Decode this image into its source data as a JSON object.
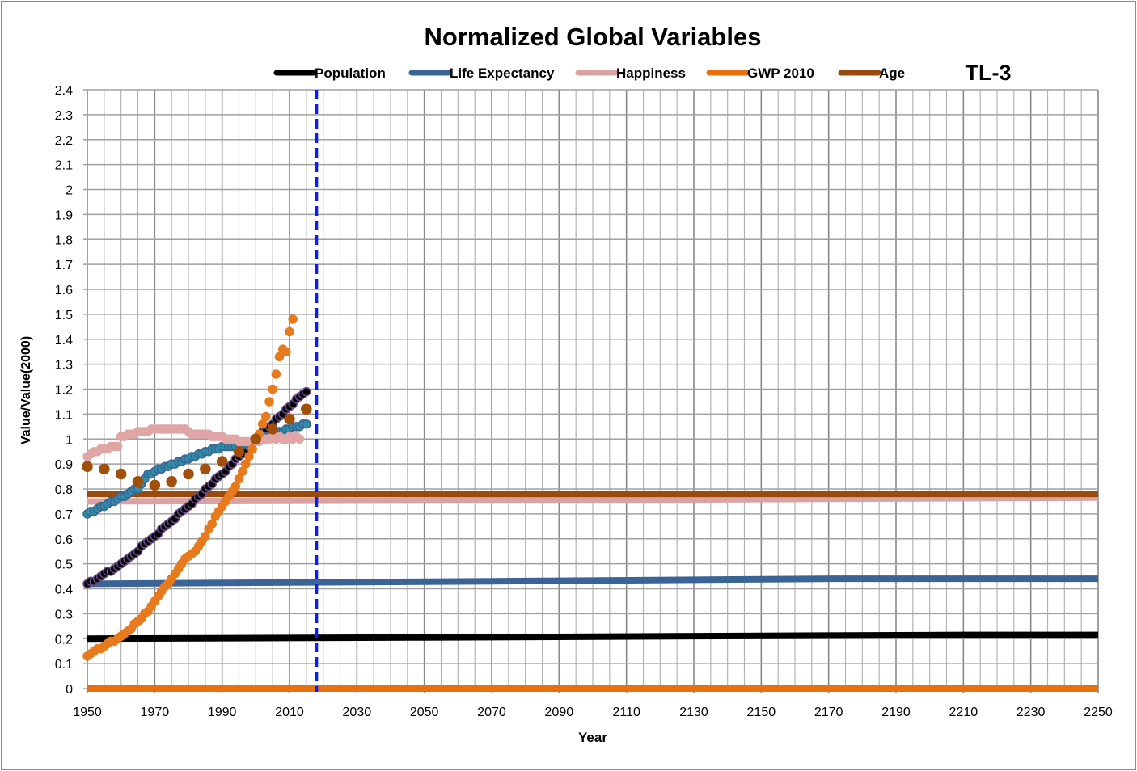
{
  "chart_data": {
    "type": "line+scatter",
    "title": "Normalized Global Variables",
    "tag": "TL-3",
    "xlabel": "Year",
    "ylabel": "Value/Value(2000)",
    "xlim": [
      1950,
      2250
    ],
    "ylim": [
      0,
      2.4
    ],
    "x_ticks": [
      1950,
      1970,
      1990,
      2010,
      2030,
      2050,
      2070,
      2090,
      2110,
      2130,
      2150,
      2170,
      2190,
      2210,
      2230,
      2250
    ],
    "y_ticks": [
      "0",
      "0.1",
      "0.2",
      "0.3",
      "0.4",
      "0.5",
      "0.6",
      "0.7",
      "0.8",
      "0.9",
      "1",
      "1.1",
      "1.2",
      "1.3",
      "1.4",
      "1.5",
      "1.6",
      "1.7",
      "1.8",
      "1.9",
      "2",
      "2.1",
      "2.2",
      "2.3",
      "2.4"
    ],
    "grid": true,
    "legend_position": "top",
    "vertical_marker_year": 2018,
    "vertical_marker_color": "#0a1ef0",
    "series": [
      {
        "name": "Population",
        "color": "#000000",
        "line": [
          [
            1950,
            0.2
          ],
          [
            2050,
            0.205
          ],
          [
            2130,
            0.21
          ],
          [
            2210,
            0.215
          ],
          [
            2250,
            0.215
          ]
        ]
      },
      {
        "name": "Life Expectancy",
        "color": "#3a6496",
        "line": [
          [
            1950,
            0.42
          ],
          [
            2070,
            0.43
          ],
          [
            2170,
            0.44
          ],
          [
            2250,
            0.44
          ]
        ]
      },
      {
        "name": "Happiness",
        "color": "#d9a3a3",
        "line": [
          [
            1950,
            0.75
          ],
          [
            2080,
            0.755
          ],
          [
            2250,
            0.765
          ]
        ]
      },
      {
        "name": "GWP 2010",
        "color": "#e8700e",
        "line": [
          [
            1950,
            0
          ],
          [
            2250,
            0
          ]
        ]
      },
      {
        "name": "Age",
        "color": "#9a4a0a",
        "line": [
          [
            1950,
            0.78
          ],
          [
            2250,
            0.78
          ]
        ]
      }
    ],
    "scatter": [
      {
        "color": "#000000",
        "edge": "#6a4a8a",
        "start_year": 1950,
        "values": [
          0.42,
          0.43,
          0.43,
          0.44,
          0.45,
          0.46,
          0.47,
          0.47,
          0.48,
          0.49,
          0.5,
          0.51,
          0.52,
          0.53,
          0.54,
          0.55,
          0.57,
          0.58,
          0.59,
          0.6,
          0.61,
          0.62,
          0.64,
          0.65,
          0.66,
          0.67,
          0.68,
          0.7,
          0.71,
          0.72,
          0.73,
          0.74,
          0.76,
          0.77,
          0.78,
          0.8,
          0.81,
          0.82,
          0.84,
          0.85,
          0.86,
          0.87,
          0.89,
          0.9,
          0.92,
          0.93,
          0.94,
          0.96,
          0.97,
          0.99,
          1.0,
          1.01,
          1.03,
          1.04,
          1.05,
          1.06,
          1.08,
          1.09,
          1.1,
          1.12,
          1.13,
          1.14,
          1.16,
          1.17,
          1.18,
          1.19
        ]
      },
      {
        "color": "#2e8fa8",
        "edge": "#3a6496",
        "start_year": 1950,
        "values": [
          0.7,
          0.71,
          0.71,
          0.72,
          0.73,
          0.73,
          0.74,
          0.75,
          0.75,
          0.76,
          0.77,
          0.77,
          0.78,
          0.79,
          0.8,
          0.8,
          0.82,
          0.84,
          0.86,
          0.86,
          0.87,
          0.88,
          0.88,
          0.89,
          0.89,
          0.9,
          0.9,
          0.91,
          0.91,
          0.92,
          0.92,
          0.93,
          0.93,
          0.94,
          0.94,
          0.95,
          0.95,
          0.96,
          0.96,
          0.96,
          0.97,
          0.97,
          0.97,
          0.97,
          0.97,
          0.98,
          0.98,
          0.98,
          0.98,
          0.99,
          0.99,
          1.0,
          1.0,
          1.01,
          1.01,
          1.02,
          1.02,
          1.03,
          1.03,
          1.04,
          1.04,
          1.05,
          1.05,
          1.05,
          1.06,
          1.06
        ]
      },
      {
        "color": "#e0a5a5",
        "edge": "#e0a5a5",
        "start_year": 1950,
        "values": [
          0.93,
          0.94,
          0.95,
          0.95,
          0.96,
          0.96,
          0.96,
          0.97,
          0.97,
          0.97,
          1.01,
          1.01,
          1.02,
          1.02,
          1.02,
          1.03,
          1.03,
          1.03,
          1.03,
          1.04,
          1.04,
          1.04,
          1.04,
          1.04,
          1.04,
          1.04,
          1.04,
          1.04,
          1.04,
          1.04,
          1.03,
          1.02,
          1.02,
          1.02,
          1.02,
          1.02,
          1.02,
          1.01,
          1.01,
          1.01,
          1.01,
          1.0,
          1.0,
          1.0,
          1.0,
          0.99,
          0.99,
          0.99,
          0.99,
          0.99,
          0.99,
          0.99,
          1.0,
          1.0,
          1.0,
          1.01,
          1.0,
          1.01,
          1.0,
          1.0,
          1.01,
          1.0,
          1.01,
          1.0
        ]
      },
      {
        "color": "#e87a1e",
        "edge": "#e87a1e",
        "start_year": 1950,
        "values": [
          0.13,
          0.14,
          0.15,
          0.16,
          0.16,
          0.17,
          0.18,
          0.19,
          0.19,
          0.2,
          0.21,
          0.22,
          0.23,
          0.24,
          0.26,
          0.27,
          0.28,
          0.3,
          0.31,
          0.33,
          0.35,
          0.37,
          0.39,
          0.41,
          0.42,
          0.44,
          0.46,
          0.48,
          0.5,
          0.52,
          0.53,
          0.54,
          0.55,
          0.57,
          0.59,
          0.61,
          0.64,
          0.66,
          0.69,
          0.71,
          0.73,
          0.75,
          0.77,
          0.79,
          0.81,
          0.84,
          0.87,
          0.9,
          0.93,
          0.96,
          1.0,
          1.02,
          1.06,
          1.09,
          1.15,
          1.2,
          1.26,
          1.33,
          1.36,
          1.35,
          1.43,
          1.48
        ]
      },
      {
        "color": "#a0500a",
        "edge": "#a0500a",
        "points": [
          [
            1950,
            0.89
          ],
          [
            1955,
            0.88
          ],
          [
            1960,
            0.86
          ],
          [
            1965,
            0.83
          ],
          [
            1970,
            0.815
          ],
          [
            1975,
            0.83
          ],
          [
            1980,
            0.86
          ],
          [
            1985,
            0.88
          ],
          [
            1990,
            0.91
          ],
          [
            1995,
            0.95
          ],
          [
            2000,
            1.0
          ],
          [
            2005,
            1.04
          ],
          [
            2010,
            1.08
          ],
          [
            2015,
            1.12
          ]
        ]
      }
    ]
  }
}
